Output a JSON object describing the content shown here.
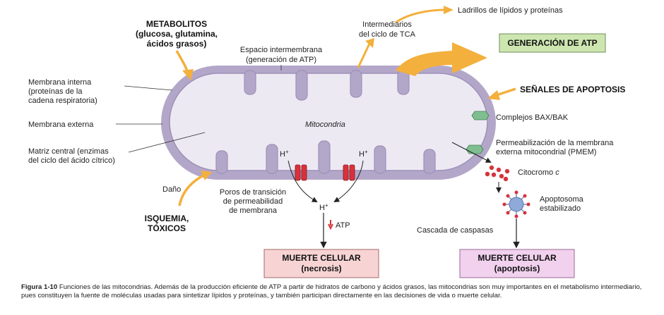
{
  "labels": {
    "metabolitos": "METABOLITOS",
    "metabolitos_sub1": "(glucosa, glutamina,",
    "metabolitos_sub2": "ácidos grasos)",
    "espacio1": "Espacio intermembrana",
    "espacio2": "(generación de ATP)",
    "intermediarios1": "Intermediarios",
    "intermediarios2": "del ciclo de TCA",
    "ladrillos": "Ladrillos de lípidos y proteínas",
    "generacion_atp": "GENERACIÓN DE ATP",
    "memb_interna1": "Membrana interna",
    "memb_interna2": "(proteínas de la",
    "memb_interna3": "cadena respiratoria)",
    "memb_externa": "Membrana externa",
    "matriz1": "Matriz central (enzimas",
    "matriz2": "del ciclo del ácido cítrico)",
    "mitocondria": "Mitocondria",
    "senales": "SEÑALES DE APOPTOSIS",
    "bax_bak": "Complejos BAX/BAK",
    "pmem1": "Permeabilización de la membrana",
    "pmem2": "externa mitocondrial (PMEM)",
    "citocromo": "Citocromo",
    "citocromo_c": "c",
    "apoptosoma1": "Apoptosoma",
    "apoptosoma2": "estabilizado",
    "dano": "Daño",
    "poros1": "Poros de transición",
    "poros2": "de permeabilidad",
    "poros3": "de membrana",
    "h_plus": "H",
    "plus": "+",
    "atp": "ATP",
    "isquemia1": "ISQUEMIA,",
    "isquemia2": "TÓXICOS",
    "cascada": "Cascada de caspasas",
    "muerte_necrosis_title": "MUERTE CELULAR",
    "muerte_necrosis_sub": "(necrosis)",
    "muerte_apoptosis_title": "MUERTE CELULAR",
    "muerte_apoptosis_sub": "(apoptosis)"
  },
  "caption": {
    "figure": "Figura 1-10",
    "text": "Funciones de las mitocondrias. Además de la producción eficiente de ATP a partir de hidratos de carbono y ácidos grasos, las mitocondrias son muy importantes en el metabolismo intermediario, pues constituyen la fuente de moléculas usadas para sintetizar lípidos y proteínas, y también participan directamente en las decisiones de vida o muerte celular."
  },
  "colors": {
    "outer_membrane": "#b3a7c9",
    "matrix": "#ede9f3",
    "arrow_orange": "#f3b03c",
    "atp_box": "#cde6b0",
    "necrosis_box": "#f7d3d3",
    "apoptosis_box": "#f1d1ee",
    "pore": "#d8323c",
    "bax": "#7fbf8f",
    "cytochrome": "#d8323c",
    "apoptosome": "#8fa9d8"
  },
  "icons": [
    "orange-arrow",
    "pore-channel",
    "bax-bak-complex",
    "cytochrome-dot",
    "apoptosome-wheel",
    "atp-down-arrow"
  ]
}
